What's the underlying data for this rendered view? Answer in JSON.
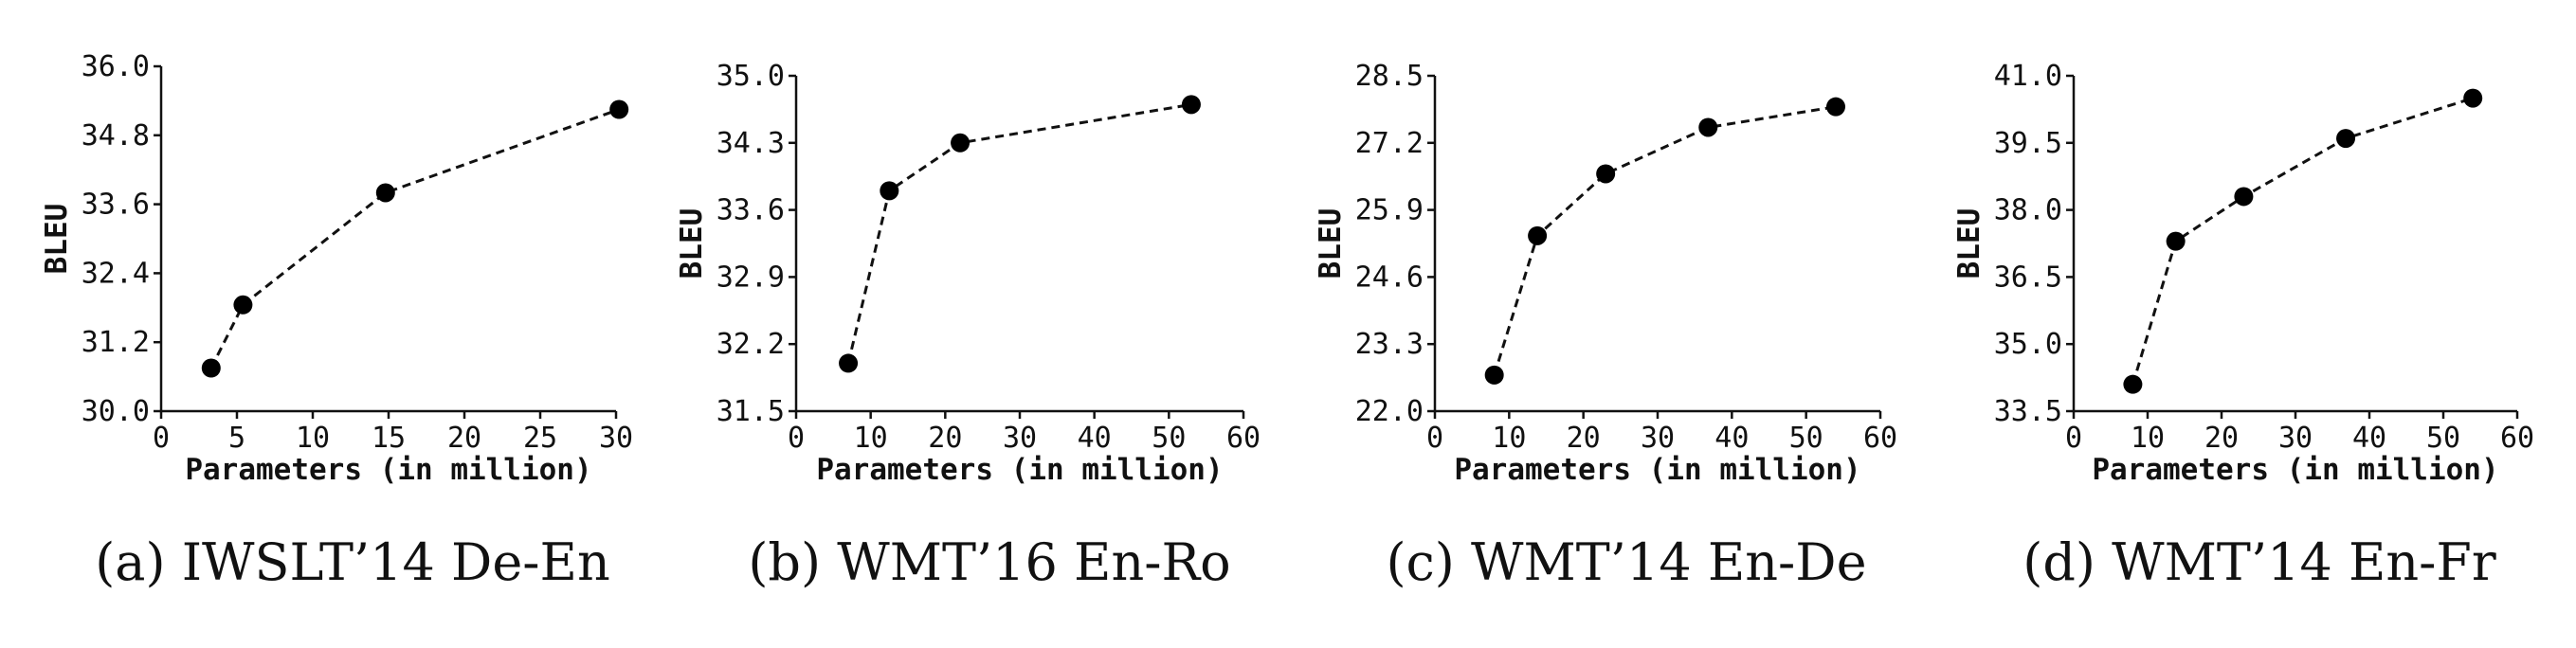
{
  "chart_data": [
    {
      "type": "line",
      "caption": "(a) IWSLT’14 De-En",
      "xlabel": "Parameters (in million)",
      "ylabel": "BLEU",
      "xlim": [
        0,
        30
      ],
      "ylim": [
        30.0,
        36.0
      ],
      "xticks": [
        0,
        5,
        10,
        15,
        20,
        25,
        30
      ],
      "yticks": [
        30.0,
        31.2,
        32.4,
        33.6,
        34.8,
        36.0
      ],
      "xtick_labels": [
        "0",
        "5",
        "10",
        "15",
        "20",
        "25",
        "30"
      ],
      "ytick_labels": [
        "30.0",
        "31.2",
        "32.4",
        "33.6",
        "34.8",
        "36.0"
      ],
      "x": [
        3.3,
        5.4,
        14.8,
        30.2
      ],
      "y": [
        30.75,
        31.85,
        33.8,
        35.25
      ]
    },
    {
      "type": "line",
      "caption": "(b) WMT’16 En-Ro",
      "xlabel": "Parameters (in million)",
      "ylabel": "BLEU",
      "xlim": [
        0,
        60
      ],
      "ylim": [
        31.5,
        35.0
      ],
      "xticks": [
        0,
        10,
        20,
        30,
        40,
        50,
        60
      ],
      "yticks": [
        31.5,
        32.2,
        32.9,
        33.6,
        34.3,
        35.0
      ],
      "xtick_labels": [
        "0",
        "10",
        "20",
        "30",
        "40",
        "50",
        "60"
      ],
      "ytick_labels": [
        "31.5",
        "32.2",
        "32.9",
        "33.6",
        "34.3",
        "35.0"
      ],
      "x": [
        7.0,
        12.5,
        22.0,
        53.0
      ],
      "y": [
        32.0,
        33.8,
        34.3,
        34.7
      ]
    },
    {
      "type": "line",
      "caption": "(c) WMT’14 En-De",
      "xlabel": "Parameters (in million)",
      "ylabel": "BLEU",
      "xlim": [
        0,
        60
      ],
      "ylim": [
        22.0,
        28.5
      ],
      "xticks": [
        0,
        10,
        20,
        30,
        40,
        50,
        60
      ],
      "yticks": [
        22.0,
        23.3,
        24.6,
        25.9,
        27.2,
        28.5
      ],
      "xtick_labels": [
        "0",
        "10",
        "20",
        "30",
        "40",
        "50",
        "60"
      ],
      "ytick_labels": [
        "22.0",
        "23.3",
        "24.6",
        "25.9",
        "27.2",
        "28.5"
      ],
      "x": [
        8.0,
        13.8,
        23.0,
        36.8,
        54.0
      ],
      "y": [
        22.7,
        25.4,
        26.6,
        27.5,
        27.9
      ]
    },
    {
      "type": "line",
      "caption": "(d) WMT’14 En-Fr",
      "xlabel": "Parameters (in million)",
      "ylabel": "BLEU",
      "xlim": [
        0,
        60
      ],
      "ylim": [
        33.5,
        41.0
      ],
      "xticks": [
        0,
        10,
        20,
        30,
        40,
        50,
        60
      ],
      "yticks": [
        33.5,
        35.0,
        36.5,
        38.0,
        39.5,
        41.0
      ],
      "xtick_labels": [
        "0",
        "10",
        "20",
        "30",
        "40",
        "50",
        "60"
      ],
      "ytick_labels": [
        "33.5",
        "35.0",
        "36.5",
        "38.0",
        "39.5",
        "41.0"
      ],
      "x": [
        8.0,
        13.8,
        23.0,
        36.8,
        54.0
      ],
      "y": [
        34.1,
        37.3,
        38.3,
        39.6,
        40.5
      ]
    }
  ]
}
